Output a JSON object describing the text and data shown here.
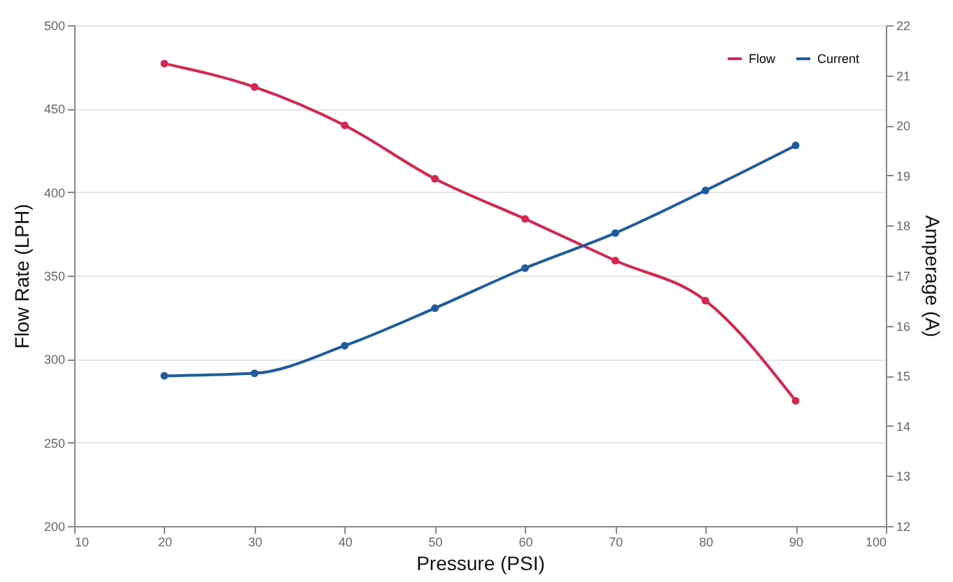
{
  "chart_data": {
    "type": "line",
    "xlabel": "Pressure (PSI)",
    "ylabel": "Flow Rate (LPH)",
    "y2label": "Amperage (A)",
    "x": [
      20,
      30,
      40,
      50,
      60,
      70,
      80,
      90
    ],
    "series": [
      {
        "name": "Flow",
        "color": "#d4264f",
        "values": [
          477,
          463,
          440,
          408,
          384,
          359,
          335,
          275
        ]
      },
      {
        "name": "Current",
        "color": "#1f5c9c",
        "axis": "y2",
        "values": [
          15.0,
          15.05,
          15.6,
          16.35,
          17.15,
          17.85,
          18.7,
          19.6
        ]
      }
    ],
    "xlim": [
      10,
      100
    ],
    "xticks": [
      10,
      20,
      30,
      40,
      50,
      60,
      70,
      80,
      90,
      100
    ],
    "ylim": [
      200,
      500
    ],
    "yticks": [
      200,
      250,
      300,
      350,
      400,
      450,
      500
    ],
    "y2lim": [
      12,
      22
    ],
    "y2ticks": [
      12,
      13,
      14,
      15,
      16,
      17,
      18,
      19,
      20,
      21,
      22
    ],
    "grid": "y",
    "legend": "top right",
    "marker": "circle",
    "line_style": "solid"
  }
}
